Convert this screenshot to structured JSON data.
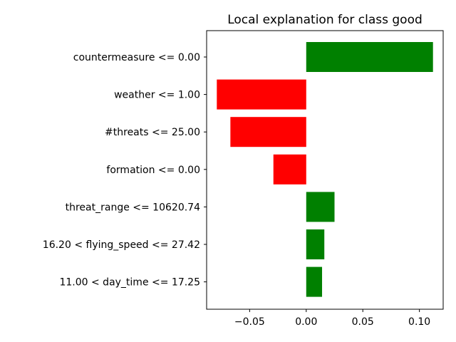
{
  "chart_data": {
    "type": "bar",
    "orientation": "horizontal",
    "title": "Local explanation for class good",
    "xlabel": "",
    "ylabel": "",
    "categories": [
      "countermeasure <= 0.00",
      "weather <= 1.00",
      "#threats <= 25.00",
      "formation <= 0.00",
      "threat_range <= 10620.74",
      "16.20 < flying_speed <= 27.42",
      "11.00 < day_time <= 17.25"
    ],
    "values": [
      0.112,
      -0.079,
      -0.067,
      -0.029,
      0.025,
      0.016,
      0.014
    ],
    "xlim": [
      -0.088,
      0.121
    ],
    "xticks": [
      -0.05,
      0.0,
      0.05,
      0.1
    ],
    "xtick_labels": [
      "−0.05",
      "0.00",
      "0.05",
      "0.10"
    ],
    "grid": false,
    "legend": "none",
    "colors": {
      "positive": "#008000",
      "negative": "#ff0000"
    }
  }
}
